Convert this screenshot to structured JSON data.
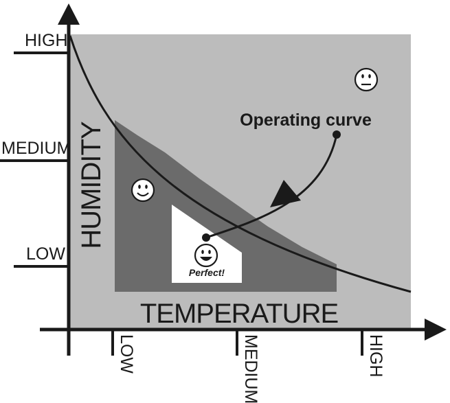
{
  "diagram": {
    "x_axis_title": "TEMPERATURE",
    "y_axis_title": "HUMIDITY",
    "y_ticks": [
      "HIGH",
      "MEDIUM",
      "LOW"
    ],
    "x_ticks": [
      "LOW",
      "MEDIUM",
      "HIGH"
    ],
    "callout_label": "Operating curve",
    "perfect_label": "Perfect!",
    "icons": [
      "neutral-face-icon",
      "smiley-face-icon",
      "happy-face-icon"
    ],
    "colors": {
      "outer_zone": "#bcbcbc",
      "inner_zone": "#6b6b6b",
      "perfect_zone": "#ffffff",
      "line": "#1a1a1a"
    }
  }
}
